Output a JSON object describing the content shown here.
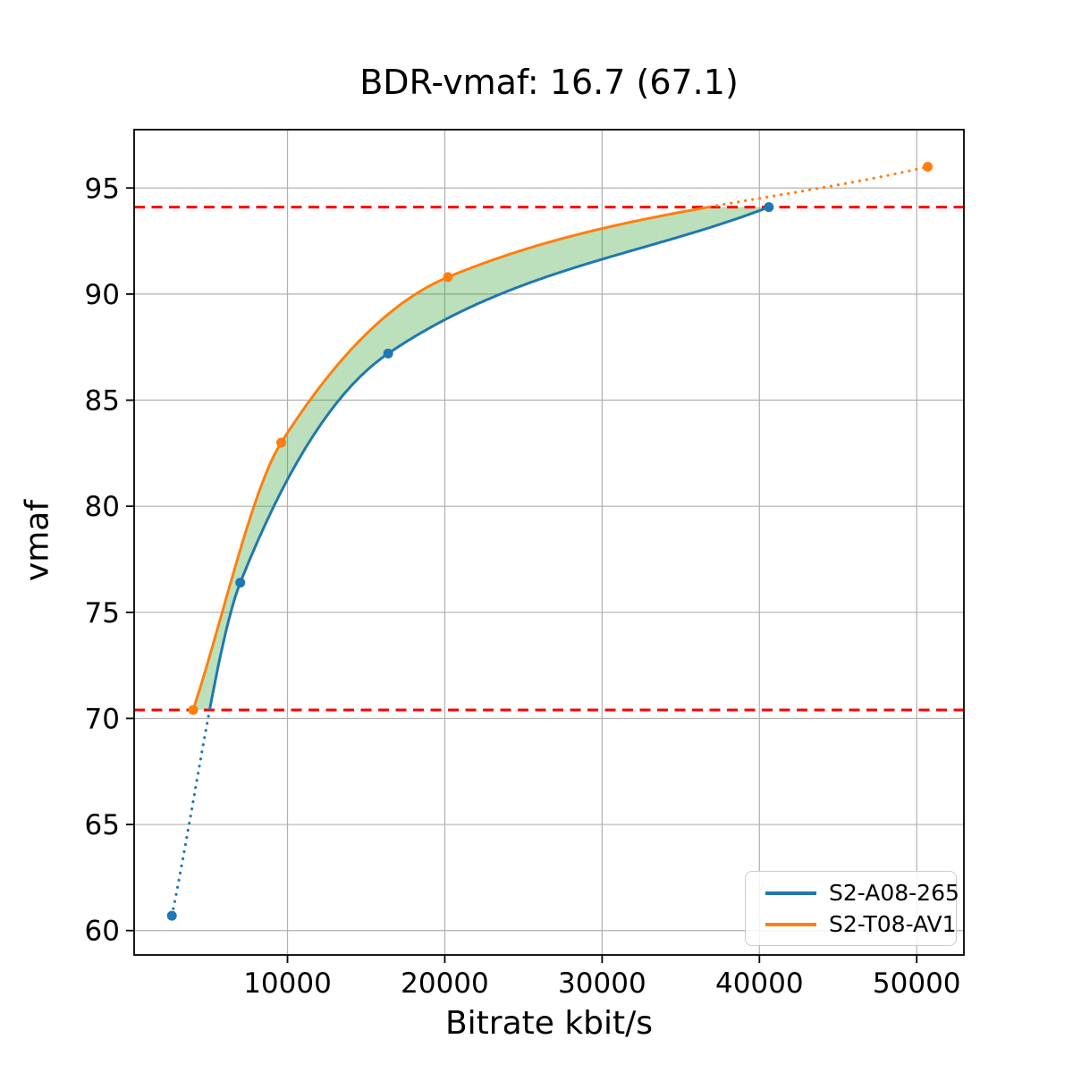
{
  "title": "BDR-vmaf: 16.7 (67.1)",
  "axes": {
    "xlabel": "Bitrate kbit/s",
    "ylabel": "vmaf"
  },
  "legend": {
    "items": [
      {
        "label": "S2-A08-265",
        "color": "#1f77b4"
      },
      {
        "label": "S2-T08-AV1",
        "color": "#ff7f0e"
      }
    ]
  },
  "chart_data": {
    "type": "line",
    "title": "BDR-vmaf: 16.7 (67.1)",
    "xlabel": "Bitrate kbit/s",
    "ylabel": "vmaf",
    "bdr_value": 16.7,
    "overlap_percent": 67.1,
    "xlim": [
      250,
      53000
    ],
    "ylim": [
      58.85,
      97.75
    ],
    "x_ticks": [
      10000,
      20000,
      30000,
      40000,
      50000
    ],
    "y_ticks": [
      60,
      65,
      70,
      75,
      80,
      85,
      90,
      95
    ],
    "grid": true,
    "grid_color": "#b0b0b0",
    "legend_position": "lower right",
    "series": [
      {
        "name": "S2-A08-265",
        "color": "#1f77b4",
        "x": [
          2650,
          7000,
          16400,
          40600
        ],
        "y": [
          60.7,
          76.4,
          87.2,
          94.1
        ]
      },
      {
        "name": "S2-T08-AV1",
        "color": "#ff7f0e",
        "x": [
          4000,
          9600,
          20200,
          50700
        ],
        "y": [
          70.4,
          83.0,
          90.8,
          96.0
        ]
      }
    ],
    "overlap_lines": {
      "style": "dashed",
      "color": "#ff0000",
      "values": [
        70.4,
        94.1
      ]
    },
    "fill_between": {
      "color": "rgba(44,160,44,0.32)"
    }
  }
}
